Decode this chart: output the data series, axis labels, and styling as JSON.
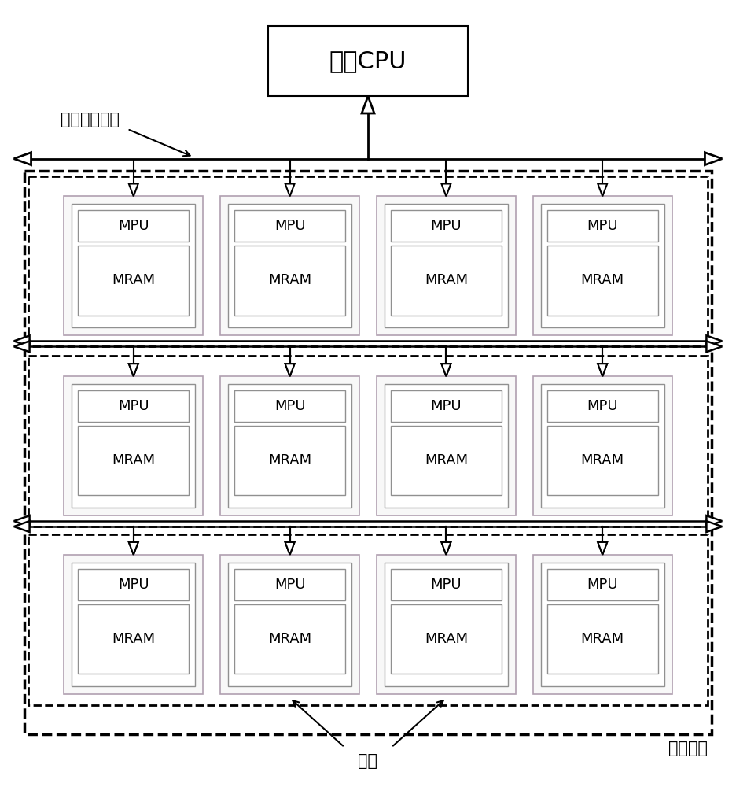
{
  "title": "主控CPU",
  "bus_label": "细胞阵列总线",
  "array_label": "细胞阵列",
  "cell_label": "细胞",
  "mpu_label": "MPU",
  "mram_label": "MRAM",
  "bg_color": "#ffffff",
  "num_rows": 3,
  "num_cols": 4
}
